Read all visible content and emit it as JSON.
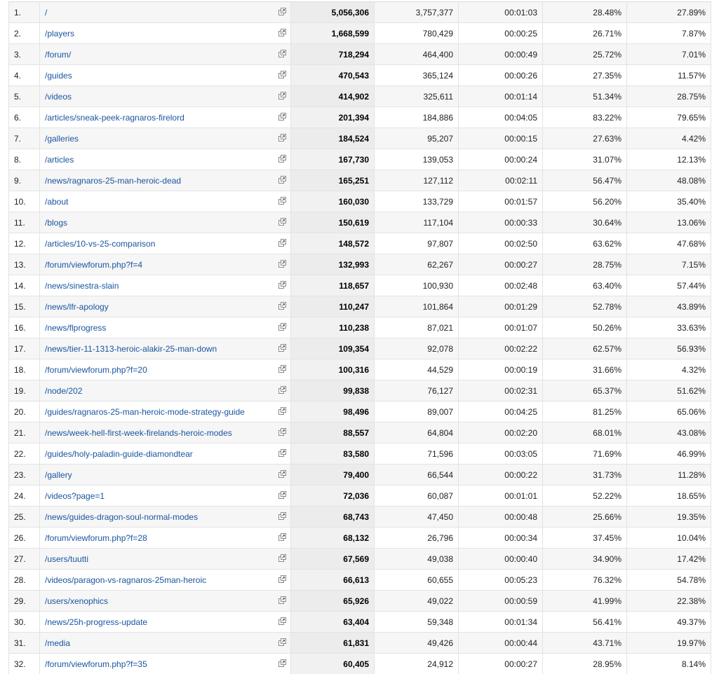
{
  "rows": [
    {
      "idx": "1.",
      "page": "/",
      "pageviews": "5,056,306",
      "unique": "3,757,377",
      "avg_time": "00:01:03",
      "bounce": "28.48%",
      "exit": "27.89%"
    },
    {
      "idx": "2.",
      "page": "/players",
      "pageviews": "1,668,599",
      "unique": "780,429",
      "avg_time": "00:00:25",
      "bounce": "26.71%",
      "exit": "7.87%"
    },
    {
      "idx": "3.",
      "page": "/forum/",
      "pageviews": "718,294",
      "unique": "464,400",
      "avg_time": "00:00:49",
      "bounce": "25.72%",
      "exit": "7.01%"
    },
    {
      "idx": "4.",
      "page": "/guides",
      "pageviews": "470,543",
      "unique": "365,124",
      "avg_time": "00:00:26",
      "bounce": "27.35%",
      "exit": "11.57%"
    },
    {
      "idx": "5.",
      "page": "/videos",
      "pageviews": "414,902",
      "unique": "325,611",
      "avg_time": "00:01:14",
      "bounce": "51.34%",
      "exit": "28.75%"
    },
    {
      "idx": "6.",
      "page": "/articles/sneak-peek-ragnaros-firelord",
      "pageviews": "201,394",
      "unique": "184,886",
      "avg_time": "00:04:05",
      "bounce": "83.22%",
      "exit": "79.65%"
    },
    {
      "idx": "7.",
      "page": "/galleries",
      "pageviews": "184,524",
      "unique": "95,207",
      "avg_time": "00:00:15",
      "bounce": "27.63%",
      "exit": "4.42%"
    },
    {
      "idx": "8.",
      "page": "/articles",
      "pageviews": "167,730",
      "unique": "139,053",
      "avg_time": "00:00:24",
      "bounce": "31.07%",
      "exit": "12.13%"
    },
    {
      "idx": "9.",
      "page": "/news/ragnaros-25-man-heroic-dead",
      "pageviews": "165,251",
      "unique": "127,112",
      "avg_time": "00:02:11",
      "bounce": "56.47%",
      "exit": "48.08%"
    },
    {
      "idx": "10.",
      "page": "/about",
      "pageviews": "160,030",
      "unique": "133,729",
      "avg_time": "00:01:57",
      "bounce": "56.20%",
      "exit": "35.40%"
    },
    {
      "idx": "11.",
      "page": "/blogs",
      "pageviews": "150,619",
      "unique": "117,104",
      "avg_time": "00:00:33",
      "bounce": "30.64%",
      "exit": "13.06%"
    },
    {
      "idx": "12.",
      "page": "/articles/10-vs-25-comparison",
      "pageviews": "148,572",
      "unique": "97,807",
      "avg_time": "00:02:50",
      "bounce": "63.62%",
      "exit": "47.68%"
    },
    {
      "idx": "13.",
      "page": "/forum/viewforum.php?f=4",
      "pageviews": "132,993",
      "unique": "62,267",
      "avg_time": "00:00:27",
      "bounce": "28.75%",
      "exit": "7.15%"
    },
    {
      "idx": "14.",
      "page": "/news/sinestra-slain",
      "pageviews": "118,657",
      "unique": "100,930",
      "avg_time": "00:02:48",
      "bounce": "63.40%",
      "exit": "57.44%"
    },
    {
      "idx": "15.",
      "page": "/news/lfr-apology",
      "pageviews": "110,247",
      "unique": "101,864",
      "avg_time": "00:01:29",
      "bounce": "52.78%",
      "exit": "43.89%"
    },
    {
      "idx": "16.",
      "page": "/news/flprogress",
      "pageviews": "110,238",
      "unique": "87,021",
      "avg_time": "00:01:07",
      "bounce": "50.26%",
      "exit": "33.63%"
    },
    {
      "idx": "17.",
      "page": "/news/tier-11-1313-heroic-alakir-25-man-down",
      "pageviews": "109,354",
      "unique": "92,078",
      "avg_time": "00:02:22",
      "bounce": "62.57%",
      "exit": "56.93%"
    },
    {
      "idx": "18.",
      "page": "/forum/viewforum.php?f=20",
      "pageviews": "100,316",
      "unique": "44,529",
      "avg_time": "00:00:19",
      "bounce": "31.66%",
      "exit": "4.32%"
    },
    {
      "idx": "19.",
      "page": "/node/202",
      "pageviews": "99,838",
      "unique": "76,127",
      "avg_time": "00:02:31",
      "bounce": "65.37%",
      "exit": "51.62%"
    },
    {
      "idx": "20.",
      "page": "/guides/ragnaros-25-man-heroic-mode-strategy-guide",
      "pageviews": "98,496",
      "unique": "89,007",
      "avg_time": "00:04:25",
      "bounce": "81.25%",
      "exit": "65.06%"
    },
    {
      "idx": "21.",
      "page": "/news/week-hell-first-week-firelands-heroic-modes",
      "pageviews": "88,557",
      "unique": "64,804",
      "avg_time": "00:02:20",
      "bounce": "68.01%",
      "exit": "43.08%"
    },
    {
      "idx": "22.",
      "page": "/guides/holy-paladin-guide-diamondtear",
      "pageviews": "83,580",
      "unique": "71,596",
      "avg_time": "00:03:05",
      "bounce": "71.69%",
      "exit": "46.99%"
    },
    {
      "idx": "23.",
      "page": "/gallery",
      "pageviews": "79,400",
      "unique": "66,544",
      "avg_time": "00:00:22",
      "bounce": "31.73%",
      "exit": "11.28%"
    },
    {
      "idx": "24.",
      "page": "/videos?page=1",
      "pageviews": "72,036",
      "unique": "60,087",
      "avg_time": "00:01:01",
      "bounce": "52.22%",
      "exit": "18.65%"
    },
    {
      "idx": "25.",
      "page": "/news/guides-dragon-soul-normal-modes",
      "pageviews": "68,743",
      "unique": "47,450",
      "avg_time": "00:00:48",
      "bounce": "25.66%",
      "exit": "19.35%"
    },
    {
      "idx": "26.",
      "page": "/forum/viewforum.php?f=28",
      "pageviews": "68,132",
      "unique": "26,796",
      "avg_time": "00:00:34",
      "bounce": "37.45%",
      "exit": "10.04%"
    },
    {
      "idx": "27.",
      "page": "/users/tuutti",
      "pageviews": "67,569",
      "unique": "49,038",
      "avg_time": "00:00:40",
      "bounce": "34.90%",
      "exit": "17.42%"
    },
    {
      "idx": "28.",
      "page": "/videos/paragon-vs-ragnaros-25man-heroic",
      "pageviews": "66,613",
      "unique": "60,655",
      "avg_time": "00:05:23",
      "bounce": "76.32%",
      "exit": "54.78%"
    },
    {
      "idx": "29.",
      "page": "/users/xenophics",
      "pageviews": "65,926",
      "unique": "49,022",
      "avg_time": "00:00:59",
      "bounce": "41.99%",
      "exit": "22.38%"
    },
    {
      "idx": "30.",
      "page": "/news/25h-progress-update",
      "pageviews": "63,404",
      "unique": "59,348",
      "avg_time": "00:01:34",
      "bounce": "56.41%",
      "exit": "49.37%"
    },
    {
      "idx": "31.",
      "page": "/media",
      "pageviews": "61,831",
      "unique": "49,426",
      "avg_time": "00:00:44",
      "bounce": "43.71%",
      "exit": "19.97%"
    },
    {
      "idx": "32.",
      "page": "/forum/viewforum.php?f=35",
      "pageviews": "60,405",
      "unique": "24,912",
      "avg_time": "00:00:27",
      "bounce": "28.95%",
      "exit": "8.14%"
    }
  ],
  "icons": {
    "row_link": "external-link-icon"
  }
}
